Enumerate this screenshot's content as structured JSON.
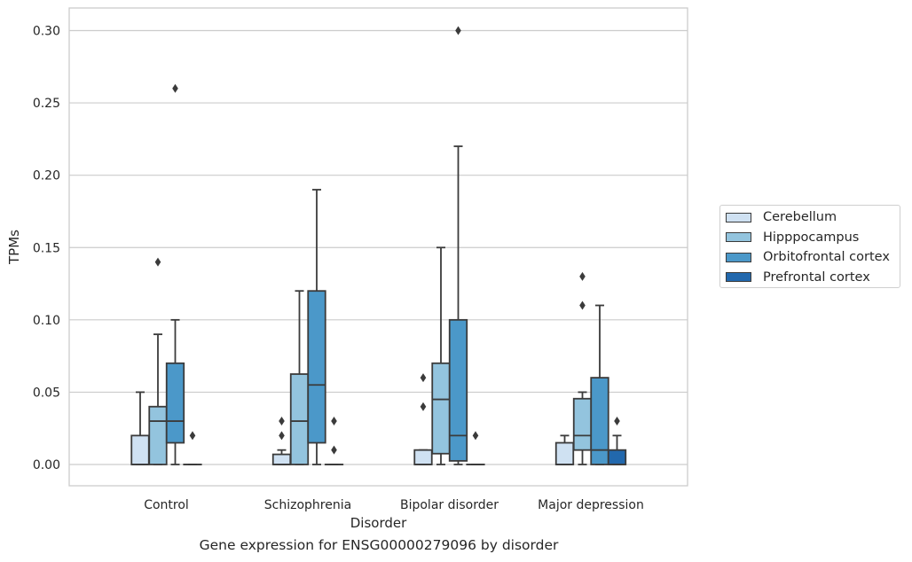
{
  "chart_data": {
    "type": "box",
    "categories": [
      "Control",
      "Schizophrenia",
      "Bipolar disorder",
      "Major depression"
    ],
    "series": [
      {
        "name": "Cerebellum",
        "color": "#cfe1f2",
        "boxes": [
          {
            "whislo": 0.0,
            "q1": 0.0,
            "med": 0.0,
            "q3": 0.02,
            "whishi": 0.05,
            "fliers": []
          },
          {
            "whislo": 0.0,
            "q1": 0.0,
            "med": 0.0,
            "q3": 0.007,
            "whishi": 0.01,
            "fliers": [
              0.02,
              0.03
            ]
          },
          {
            "whislo": 0.0,
            "q1": 0.0,
            "med": 0.0,
            "q3": 0.01,
            "whishi": 0.01,
            "fliers": [
              0.04,
              0.06
            ]
          },
          {
            "whislo": 0.0,
            "q1": 0.0,
            "med": 0.0,
            "q3": 0.015,
            "whishi": 0.02,
            "fliers": []
          }
        ]
      },
      {
        "name": "Hipppocampus",
        "color": "#93c4de",
        "boxes": [
          {
            "whislo": 0.0,
            "q1": 0.0,
            "med": 0.03,
            "q3": 0.04,
            "whishi": 0.09,
            "fliers": [
              0.14
            ]
          },
          {
            "whislo": 0.0,
            "q1": 0.0,
            "med": 0.03,
            "q3": 0.0625,
            "whishi": 0.12,
            "fliers": []
          },
          {
            "whislo": 0.0,
            "q1": 0.0075,
            "med": 0.045,
            "q3": 0.07,
            "whishi": 0.15,
            "fliers": []
          },
          {
            "whislo": 0.0,
            "q1": 0.01,
            "med": 0.02,
            "q3": 0.0455,
            "whishi": 0.05,
            "fliers": [
              0.11,
              0.13
            ]
          }
        ]
      },
      {
        "name": "Orbitofrontal cortex",
        "color": "#4b98c9",
        "boxes": [
          {
            "whislo": 0.0,
            "q1": 0.015,
            "med": 0.03,
            "q3": 0.07,
            "whishi": 0.1,
            "fliers": [
              0.26
            ]
          },
          {
            "whislo": 0.0,
            "q1": 0.015,
            "med": 0.055,
            "q3": 0.12,
            "whishi": 0.19,
            "fliers": []
          },
          {
            "whislo": 0.0,
            "q1": 0.0025,
            "med": 0.02,
            "q3": 0.1,
            "whishi": 0.22,
            "fliers": [
              0.3
            ]
          },
          {
            "whislo": 0.0,
            "q1": 0.0,
            "med": 0.01,
            "q3": 0.06,
            "whishi": 0.11,
            "fliers": []
          }
        ]
      },
      {
        "name": "Prefrontal cortex",
        "color": "#2268ad",
        "boxes": [
          {
            "whislo": 0.0,
            "q1": 0.0,
            "med": 0.0,
            "q3": 0.0,
            "whishi": 0.0,
            "fliers": [
              0.02
            ]
          },
          {
            "whislo": 0.0,
            "q1": 0.0,
            "med": 0.0,
            "q3": 0.0,
            "whishi": 0.0,
            "fliers": [
              0.01,
              0.03
            ]
          },
          {
            "whislo": 0.0,
            "q1": 0.0,
            "med": 0.0,
            "q3": 0.0,
            "whishi": 0.0,
            "fliers": [
              0.02
            ]
          },
          {
            "whislo": 0.0,
            "q1": 0.0,
            "med": 0.0,
            "q3": 0.01,
            "whishi": 0.02,
            "fliers": [
              0.03
            ]
          }
        ]
      }
    ],
    "xlabel": "Disorder",
    "ylabel": "TPMs",
    "ylim": [
      -0.0145,
      0.315
    ],
    "yticks": [
      0.0,
      0.05,
      0.1,
      0.15,
      0.2,
      0.25,
      0.3
    ],
    "ytick_labels": [
      "0.00",
      "0.05",
      "0.10",
      "0.15",
      "0.20",
      "0.25",
      "0.30"
    ],
    "grid": "horizontal",
    "legend_placement": "outside-right",
    "caption": "Gene expression for ENSG00000279096 by disorder"
  }
}
